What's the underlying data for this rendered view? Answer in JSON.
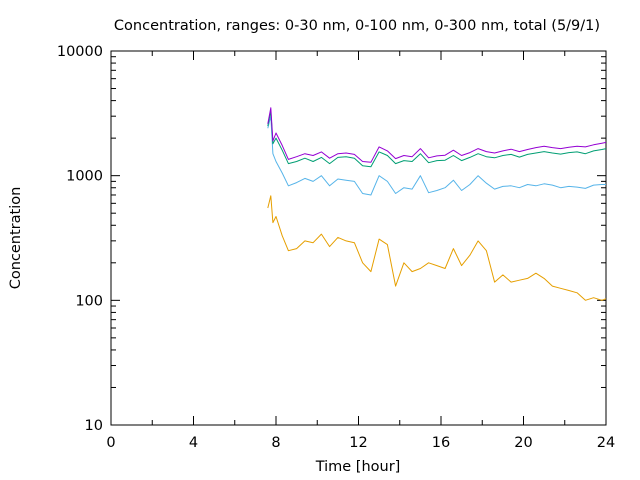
{
  "chart_data": {
    "type": "line",
    "title": "Concentration, ranges: 0-30 nm, 0-100 nm, 0-300 nm, total (5/9/1)",
    "xlabel": "Time [hour]",
    "ylabel": "Concentration",
    "xlim": [
      0,
      24
    ],
    "ylim": [
      10,
      10000
    ],
    "yscale": "log",
    "grid": false,
    "legend": "none",
    "x_ticks": [
      0,
      4,
      8,
      12,
      16,
      20,
      24
    ],
    "x_tick_labels": [
      "0",
      "4",
      "8",
      "12",
      "16",
      "20",
      "24"
    ],
    "y_ticks": [
      10,
      100,
      1000,
      10000
    ],
    "y_tick_labels": [
      "10",
      "100",
      "1000",
      "10000"
    ],
    "x": [
      7.6,
      7.75,
      7.85,
      8.0,
      8.3,
      8.6,
      9.0,
      9.4,
      9.8,
      10.2,
      10.6,
      11.0,
      11.4,
      11.8,
      12.2,
      12.6,
      13.0,
      13.4,
      13.8,
      14.2,
      14.6,
      15.0,
      15.4,
      15.8,
      16.2,
      16.6,
      17.0,
      17.4,
      17.8,
      18.2,
      18.6,
      19.0,
      19.4,
      19.8,
      20.2,
      20.6,
      21.0,
      21.4,
      21.8,
      22.2,
      22.6,
      23.0,
      23.4,
      23.8,
      24.0
    ],
    "series": [
      {
        "color": "#e69f00",
        "values": [
          550,
          690,
          420,
          470,
          330,
          250,
          260,
          300,
          290,
          340,
          270,
          320,
          300,
          290,
          200,
          170,
          310,
          280,
          130,
          200,
          170,
          180,
          200,
          190,
          180,
          260,
          190,
          230,
          300,
          250,
          140,
          160,
          140,
          145,
          150,
          165,
          150,
          130,
          125,
          120,
          115,
          100,
          105,
          100,
          103
        ]
      },
      {
        "color": "#56b4e9",
        "values": [
          2400,
          3000,
          1500,
          1300,
          1050,
          830,
          880,
          950,
          900,
          1000,
          830,
          940,
          920,
          900,
          720,
          700,
          1000,
          900,
          720,
          800,
          780,
          1000,
          730,
          760,
          800,
          920,
          760,
          850,
          1000,
          870,
          780,
          820,
          830,
          800,
          850,
          830,
          860,
          840,
          800,
          820,
          810,
          790,
          840,
          850,
          850
        ]
      },
      {
        "color": "#009e73",
        "values": [
          2500,
          3300,
          1800,
          2000,
          1600,
          1250,
          1300,
          1380,
          1300,
          1400,
          1250,
          1400,
          1420,
          1380,
          1200,
          1180,
          1550,
          1450,
          1250,
          1320,
          1300,
          1500,
          1270,
          1320,
          1330,
          1450,
          1320,
          1400,
          1500,
          1420,
          1390,
          1450,
          1480,
          1410,
          1480,
          1520,
          1560,
          1520,
          1490,
          1530,
          1550,
          1500,
          1580,
          1620,
          1650
        ]
      },
      {
        "color": "#9400d3",
        "values": [
          2600,
          3500,
          1900,
          2200,
          1750,
          1350,
          1420,
          1500,
          1450,
          1550,
          1380,
          1500,
          1520,
          1480,
          1300,
          1280,
          1700,
          1580,
          1370,
          1450,
          1420,
          1650,
          1390,
          1440,
          1460,
          1600,
          1450,
          1530,
          1650,
          1560,
          1520,
          1580,
          1630,
          1560,
          1620,
          1680,
          1720,
          1680,
          1650,
          1690,
          1720,
          1700,
          1770,
          1820,
          1850
        ]
      }
    ]
  }
}
